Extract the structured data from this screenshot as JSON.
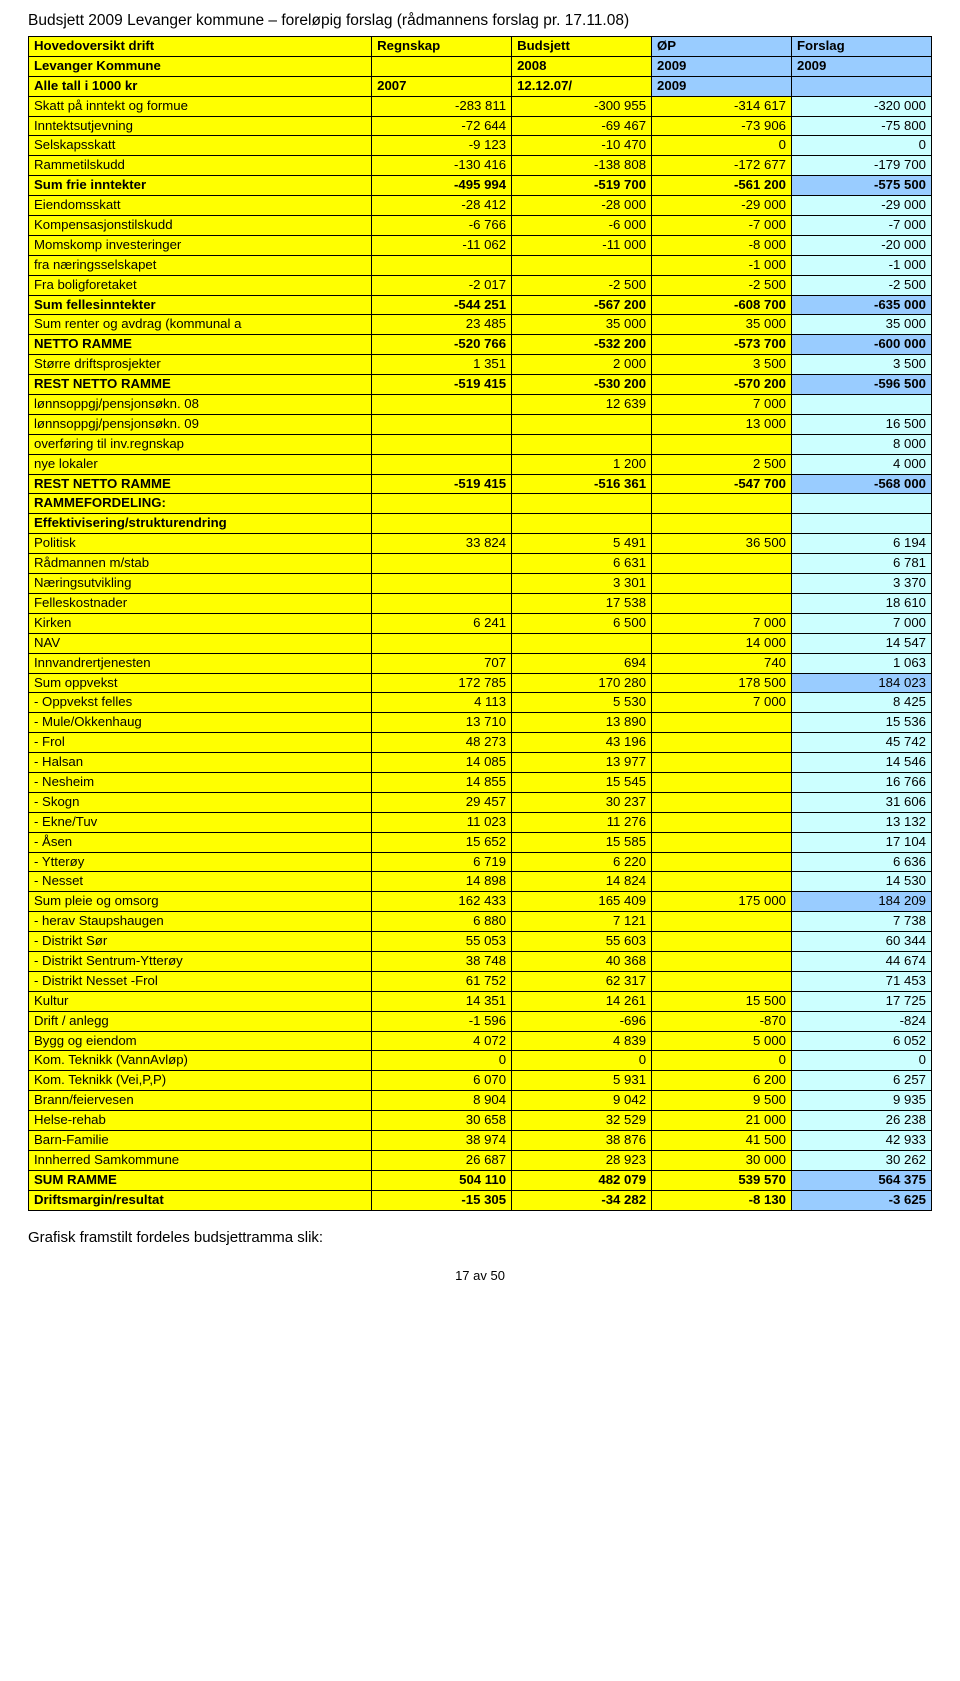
{
  "doc_title": "Budsjett 2009 Levanger kommune – foreløpig forslag (rådmannens forslag pr. 17.11.08)",
  "colors": {
    "yellow": "#ffff00",
    "blue_header": "#99ccff",
    "blue_cell": "#ccffff",
    "white": "#ffffff"
  },
  "header": [
    {
      "label": "Hovedoversikt drift",
      "c1": "Regnskap",
      "c2": "Budsjett",
      "c3": "ØP",
      "c4": "Forslag",
      "bold": true,
      "bg": [
        "#ffff00",
        "#ffff00",
        "#ffff00",
        "#99ccff",
        "#99ccff"
      ]
    },
    {
      "label": "Levanger Kommune",
      "c1": "",
      "c2": "2008",
      "c3": "2009",
      "c4": "2009",
      "bold": true,
      "bg": [
        "#ffff00",
        "#ffff00",
        "#ffff00",
        "#99ccff",
        "#99ccff"
      ]
    },
    {
      "label": "Alle tall i 1000 kr",
      "c1": "2007",
      "c2": "12.12.07/",
      "c3": "2009",
      "c4": "",
      "bold": true,
      "bg": [
        "#ffff00",
        "#ffff00",
        "#ffff00",
        "#99ccff",
        "#99ccff"
      ]
    }
  ],
  "rows": [
    {
      "label": "Skatt på inntekt og formue",
      "c1": "-283 811",
      "c2": "-300 955",
      "c3": "-314 617",
      "c4": "-320 000",
      "bold": false,
      "bg": [
        "#ffff00",
        "#ffff00",
        "#ffff00",
        "#ffff00",
        "#ccffff"
      ]
    },
    {
      "label": "Inntektsutjevning",
      "c1": "-72 644",
      "c2": "-69 467",
      "c3": "-73 906",
      "c4": "-75 800",
      "bold": false,
      "bg": [
        "#ffff00",
        "#ffff00",
        "#ffff00",
        "#ffff00",
        "#ccffff"
      ]
    },
    {
      "label": "Selskapsskatt",
      "c1": "-9 123",
      "c2": "-10 470",
      "c3": "0",
      "c4": "0",
      "bold": false,
      "bg": [
        "#ffff00",
        "#ffff00",
        "#ffff00",
        "#ffff00",
        "#ccffff"
      ]
    },
    {
      "label": "Rammetilskudd",
      "c1": "-130 416",
      "c2": "-138 808",
      "c3": "-172 677",
      "c4": "-179 700",
      "bold": false,
      "bg": [
        "#ffff00",
        "#ffff00",
        "#ffff00",
        "#ffff00",
        "#ccffff"
      ]
    },
    {
      "label": "Sum frie inntekter",
      "c1": "-495 994",
      "c2": "-519 700",
      "c3": "-561 200",
      "c4": "-575 500",
      "bold": true,
      "bg": [
        "#ffff00",
        "#ffff00",
        "#ffff00",
        "#ffff00",
        "#99ccff"
      ]
    },
    {
      "label": "Eiendomsskatt",
      "c1": "-28 412",
      "c2": "-28 000",
      "c3": "-29 000",
      "c4": "-29 000",
      "bold": false,
      "bg": [
        "#ffff00",
        "#ffff00",
        "#ffff00",
        "#ffff00",
        "#ccffff"
      ]
    },
    {
      "label": "Kompensasjonstilskudd",
      "c1": "-6 766",
      "c2": "-6 000",
      "c3": "-7 000",
      "c4": "-7 000",
      "bold": false,
      "bg": [
        "#ffff00",
        "#ffff00",
        "#ffff00",
        "#ffff00",
        "#ccffff"
      ]
    },
    {
      "label": "Momskomp investeringer",
      "c1": "-11 062",
      "c2": "-11 000",
      "c3": "-8 000",
      "c4": "-20 000",
      "bold": false,
      "bg": [
        "#ffff00",
        "#ffff00",
        "#ffff00",
        "#ffff00",
        "#ccffff"
      ]
    },
    {
      "label": "fra næringsselskapet",
      "c1": "",
      "c2": "",
      "c3": "-1 000",
      "c4": "-1 000",
      "bold": false,
      "bg": [
        "#ffff00",
        "#ffff00",
        "#ffff00",
        "#ffff00",
        "#ccffff"
      ]
    },
    {
      "label": "Fra boligforetaket",
      "c1": "-2 017",
      "c2": "-2 500",
      "c3": "-2 500",
      "c4": "-2 500",
      "bold": false,
      "bg": [
        "#ffff00",
        "#ffff00",
        "#ffff00",
        "#ffff00",
        "#ccffff"
      ]
    },
    {
      "label": "Sum fellesinntekter",
      "c1": "-544 251",
      "c2": "-567 200",
      "c3": "-608 700",
      "c4": "-635 000",
      "bold": true,
      "bg": [
        "#ffff00",
        "#ffff00",
        "#ffff00",
        "#ffff00",
        "#99ccff"
      ]
    },
    {
      "label": "Sum renter og avdrag (kommunal a",
      "c1": "23 485",
      "c2": "35 000",
      "c3": "35 000",
      "c4": "35 000",
      "bold": false,
      "bg": [
        "#ffff00",
        "#ffff00",
        "#ffff00",
        "#ffff00",
        "#ccffff"
      ]
    },
    {
      "label": "NETTO RAMME",
      "c1": "-520 766",
      "c2": "-532 200",
      "c3": "-573 700",
      "c4": "-600 000",
      "bold": true,
      "bg": [
        "#ffff00",
        "#ffff00",
        "#ffff00",
        "#ffff00",
        "#99ccff"
      ]
    },
    {
      "label": "Større driftsprosjekter",
      "c1": "1 351",
      "c2": "2 000",
      "c3": "3 500",
      "c4": "3 500",
      "bold": false,
      "bg": [
        "#ffff00",
        "#ffff00",
        "#ffff00",
        "#ffff00",
        "#ccffff"
      ]
    },
    {
      "label": "REST NETTO RAMME",
      "c1": "-519 415",
      "c2": "-530 200",
      "c3": "-570 200",
      "c4": "-596 500",
      "bold": true,
      "bg": [
        "#ffff00",
        "#ffff00",
        "#ffff00",
        "#ffff00",
        "#99ccff"
      ]
    },
    {
      "label": "lønnsoppgj/pensjonsøkn. 08",
      "c1": "",
      "c2": "12 639",
      "c3": "7 000",
      "c4": "",
      "bold": false,
      "bg": [
        "#ffff00",
        "#ffff00",
        "#ffff00",
        "#ffff00",
        "#ccffff"
      ]
    },
    {
      "label": "lønnsoppgj/pensjonsøkn. 09",
      "c1": "",
      "c2": "",
      "c3": "13 000",
      "c4": "16 500",
      "bold": false,
      "bg": [
        "#ffff00",
        "#ffff00",
        "#ffff00",
        "#ffff00",
        "#ccffff"
      ]
    },
    {
      "label": "overføring til inv.regnskap",
      "c1": "",
      "c2": "",
      "c3": "",
      "c4": "8 000",
      "bold": false,
      "bg": [
        "#ffff00",
        "#ffff00",
        "#ffff00",
        "#ffff00",
        "#ccffff"
      ]
    },
    {
      "label": "nye lokaler",
      "c1": "",
      "c2": "1 200",
      "c3": "2 500",
      "c4": "4 000",
      "bold": false,
      "bg": [
        "#ffff00",
        "#ffff00",
        "#ffff00",
        "#ffff00",
        "#ccffff"
      ]
    },
    {
      "label": "REST NETTO RAMME",
      "c1": "-519 415",
      "c2": "-516 361",
      "c3": "-547 700",
      "c4": "-568 000",
      "bold": true,
      "bg": [
        "#ffff00",
        "#ffff00",
        "#ffff00",
        "#ffff00",
        "#99ccff"
      ]
    },
    {
      "label": "RAMMEFORDELING:",
      "c1": "",
      "c2": "",
      "c3": "",
      "c4": "",
      "bold": true,
      "bg": [
        "#ffff00",
        "#ffff00",
        "#ffff00",
        "#ffff00",
        "#ccffff"
      ]
    },
    {
      "label": "Effektivisering/strukturendring",
      "c1": "",
      "c2": "",
      "c3": "",
      "c4": "",
      "bold": true,
      "bg": [
        "#ffff00",
        "#ffff00",
        "#ffff00",
        "#ffff00",
        "#ccffff"
      ]
    },
    {
      "label": "Politisk",
      "c1": "33 824",
      "c2": "5 491",
      "c3": "36 500",
      "c4": "6 194",
      "bold": false,
      "bg": [
        "#ffff00",
        "#ffff00",
        "#ffff00",
        "#ffff00",
        "#ccffff"
      ]
    },
    {
      "label": "Rådmannen m/stab",
      "c1": "",
      "c2": "6 631",
      "c3": "",
      "c4": "6 781",
      "bold": false,
      "bg": [
        "#ffff00",
        "#ffff00",
        "#ffff00",
        "#ffff00",
        "#ccffff"
      ]
    },
    {
      "label": "Næringsutvikling",
      "c1": "",
      "c2": "3 301",
      "c3": "",
      "c4": "3 370",
      "bold": false,
      "bg": [
        "#ffff00",
        "#ffff00",
        "#ffff00",
        "#ffff00",
        "#ccffff"
      ]
    },
    {
      "label": "Felleskostnader",
      "c1": "",
      "c2": "17 538",
      "c3": "",
      "c4": "18 610",
      "bold": false,
      "bg": [
        "#ffff00",
        "#ffff00",
        "#ffff00",
        "#ffff00",
        "#ccffff"
      ]
    },
    {
      "label": "Kirken",
      "c1": "6 241",
      "c2": "6 500",
      "c3": "7 000",
      "c4": "7 000",
      "bold": false,
      "bg": [
        "#ffff00",
        "#ffff00",
        "#ffff00",
        "#ffff00",
        "#ccffff"
      ]
    },
    {
      "label": "NAV",
      "c1": "",
      "c2": "",
      "c3": "14 000",
      "c4": "14 547",
      "bold": false,
      "bg": [
        "#ffff00",
        "#ffff00",
        "#ffff00",
        "#ffff00",
        "#ccffff"
      ]
    },
    {
      "label": "Innvandrertjenesten",
      "c1": "707",
      "c2": "694",
      "c3": "740",
      "c4": "1 063",
      "bold": false,
      "bg": [
        "#ffff00",
        "#ffff00",
        "#ffff00",
        "#ffff00",
        "#ccffff"
      ]
    },
    {
      "label": "Sum oppvekst",
      "c1": "172 785",
      "c2": "170 280",
      "c3": "178 500",
      "c4": "184 023",
      "bold": false,
      "bg": [
        "#ffff00",
        "#ffff00",
        "#ffff00",
        "#ffff00",
        "#99ccff"
      ]
    },
    {
      "label": " - Oppvekst felles",
      "c1": "4 113",
      "c2": "5 530",
      "c3": "7 000",
      "c4": "8 425",
      "bold": false,
      "bg": [
        "#ffff00",
        "#ffff00",
        "#ffff00",
        "#ffff00",
        "#ccffff"
      ]
    },
    {
      "label": " - Mule/Okkenhaug",
      "c1": "13 710",
      "c2": "13 890",
      "c3": "",
      "c4": "15 536",
      "bold": false,
      "bg": [
        "#ffff00",
        "#ffff00",
        "#ffff00",
        "#ffff00",
        "#ccffff"
      ]
    },
    {
      "label": " - Frol",
      "c1": "48 273",
      "c2": "43 196",
      "c3": "",
      "c4": "45 742",
      "bold": false,
      "bg": [
        "#ffff00",
        "#ffff00",
        "#ffff00",
        "#ffff00",
        "#ccffff"
      ]
    },
    {
      "label": " - Halsan",
      "c1": "14 085",
      "c2": "13 977",
      "c3": "",
      "c4": "14 546",
      "bold": false,
      "bg": [
        "#ffff00",
        "#ffff00",
        "#ffff00",
        "#ffff00",
        "#ccffff"
      ]
    },
    {
      "label": " - Nesheim",
      "c1": "14 855",
      "c2": "15 545",
      "c3": "",
      "c4": "16 766",
      "bold": false,
      "bg": [
        "#ffff00",
        "#ffff00",
        "#ffff00",
        "#ffff00",
        "#ccffff"
      ]
    },
    {
      "label": " - Skogn",
      "c1": "29 457",
      "c2": "30 237",
      "c3": "",
      "c4": "31 606",
      "bold": false,
      "bg": [
        "#ffff00",
        "#ffff00",
        "#ffff00",
        "#ffff00",
        "#ccffff"
      ]
    },
    {
      "label": " - Ekne/Tuv",
      "c1": "11 023",
      "c2": "11 276",
      "c3": "",
      "c4": "13 132",
      "bold": false,
      "bg": [
        "#ffff00",
        "#ffff00",
        "#ffff00",
        "#ffff00",
        "#ccffff"
      ]
    },
    {
      "label": " - Åsen",
      "c1": "15 652",
      "c2": "15 585",
      "c3": "",
      "c4": "17 104",
      "bold": false,
      "bg": [
        "#ffff00",
        "#ffff00",
        "#ffff00",
        "#ffff00",
        "#ccffff"
      ]
    },
    {
      "label": " - Ytterøy",
      "c1": "6 719",
      "c2": "6 220",
      "c3": "",
      "c4": "6 636",
      "bold": false,
      "bg": [
        "#ffff00",
        "#ffff00",
        "#ffff00",
        "#ffff00",
        "#ccffff"
      ]
    },
    {
      "label": " - Nesset",
      "c1": "14 898",
      "c2": "14 824",
      "c3": "",
      "c4": "14 530",
      "bold": false,
      "bg": [
        "#ffff00",
        "#ffff00",
        "#ffff00",
        "#ffff00",
        "#ccffff"
      ]
    },
    {
      "label": "Sum pleie og omsorg",
      "c1": "162 433",
      "c2": "165 409",
      "c3": "175 000",
      "c4": "184 209",
      "bold": false,
      "bg": [
        "#ffff00",
        "#ffff00",
        "#ffff00",
        "#ffff00",
        "#99ccff"
      ]
    },
    {
      "label": " - herav Staupshaugen",
      "c1": "6 880",
      "c2": "7 121",
      "c3": "",
      "c4": "7 738",
      "bold": false,
      "bg": [
        "#ffff00",
        "#ffff00",
        "#ffff00",
        "#ffff00",
        "#ccffff"
      ]
    },
    {
      "label": " - Distrikt Sør",
      "c1": "55 053",
      "c2": "55 603",
      "c3": "",
      "c4": "60 344",
      "bold": false,
      "bg": [
        "#ffff00",
        "#ffff00",
        "#ffff00",
        "#ffff00",
        "#ccffff"
      ]
    },
    {
      "label": " - Distrikt Sentrum-Ytterøy",
      "c1": "38 748",
      "c2": "40 368",
      "c3": "",
      "c4": "44 674",
      "bold": false,
      "bg": [
        "#ffff00",
        "#ffff00",
        "#ffff00",
        "#ffff00",
        "#ccffff"
      ]
    },
    {
      "label": " - Distrikt Nesset -Frol",
      "c1": "61 752",
      "c2": "62 317",
      "c3": "",
      "c4": "71 453",
      "bold": false,
      "bg": [
        "#ffff00",
        "#ffff00",
        "#ffff00",
        "#ffff00",
        "#ccffff"
      ]
    },
    {
      "label": "Kultur",
      "c1": "14 351",
      "c2": "14 261",
      "c3": "15 500",
      "c4": "17 725",
      "bold": false,
      "bg": [
        "#ffff00",
        "#ffff00",
        "#ffff00",
        "#ffff00",
        "#ccffff"
      ]
    },
    {
      "label": "Drift / anlegg",
      "c1": "-1 596",
      "c2": "-696",
      "c3": "-870",
      "c4": "-824",
      "bold": false,
      "bg": [
        "#ffff00",
        "#ffff00",
        "#ffff00",
        "#ffff00",
        "#ccffff"
      ]
    },
    {
      "label": "Bygg og eiendom",
      "c1": "4 072",
      "c2": "4 839",
      "c3": "5 000",
      "c4": "6 052",
      "bold": false,
      "bg": [
        "#ffff00",
        "#ffff00",
        "#ffff00",
        "#ffff00",
        "#ccffff"
      ]
    },
    {
      "label": "Kom. Teknikk (VannAvløp)",
      "c1": "0",
      "c2": "0",
      "c3": "0",
      "c4": "0",
      "bold": false,
      "bg": [
        "#ffff00",
        "#ffff00",
        "#ffff00",
        "#ffff00",
        "#ccffff"
      ]
    },
    {
      "label": "Kom. Teknikk  (Vei,P,P)",
      "c1": "6 070",
      "c2": "5 931",
      "c3": "6 200",
      "c4": "6 257",
      "bold": false,
      "bg": [
        "#ffff00",
        "#ffff00",
        "#ffff00",
        "#ffff00",
        "#ccffff"
      ]
    },
    {
      "label": "Brann/feiervesen",
      "c1": "8 904",
      "c2": "9 042",
      "c3": "9 500",
      "c4": "9 935",
      "bold": false,
      "bg": [
        "#ffff00",
        "#ffff00",
        "#ffff00",
        "#ffff00",
        "#ccffff"
      ]
    },
    {
      "label": "Helse-rehab",
      "c1": "30 658",
      "c2": "32 529",
      "c3": "21 000",
      "c4": "26 238",
      "bold": false,
      "bg": [
        "#ffff00",
        "#ffff00",
        "#ffff00",
        "#ffff00",
        "#ccffff"
      ]
    },
    {
      "label": "Barn-Familie",
      "c1": "38 974",
      "c2": "38 876",
      "c3": "41 500",
      "c4": "42 933",
      "bold": false,
      "bg": [
        "#ffff00",
        "#ffff00",
        "#ffff00",
        "#ffff00",
        "#ccffff"
      ]
    },
    {
      "label": "Innherred Samkommune",
      "c1": "26 687",
      "c2": "28 923",
      "c3": "30 000",
      "c4": "30 262",
      "bold": false,
      "bg": [
        "#ffff00",
        "#ffff00",
        "#ffff00",
        "#ffff00",
        "#ccffff"
      ]
    },
    {
      "label": "SUM RAMME",
      "c1": "504 110",
      "c2": "482 079",
      "c3": "539 570",
      "c4": "564 375",
      "bold": true,
      "bg": [
        "#ffff00",
        "#ffff00",
        "#ffff00",
        "#ffff00",
        "#99ccff"
      ]
    },
    {
      "label": "Driftsmargin/resultat",
      "c1": "-15 305",
      "c2": "-34 282",
      "c3": "-8 130",
      "c4": "-3 625",
      "bold": true,
      "bg": [
        "#ffff00",
        "#ffff00",
        "#ffff00",
        "#ffff00",
        "#99ccff"
      ]
    }
  ],
  "footer_note": "Grafisk framstilt fordeles budsjettramma slik:",
  "page_num": "17 av 50"
}
